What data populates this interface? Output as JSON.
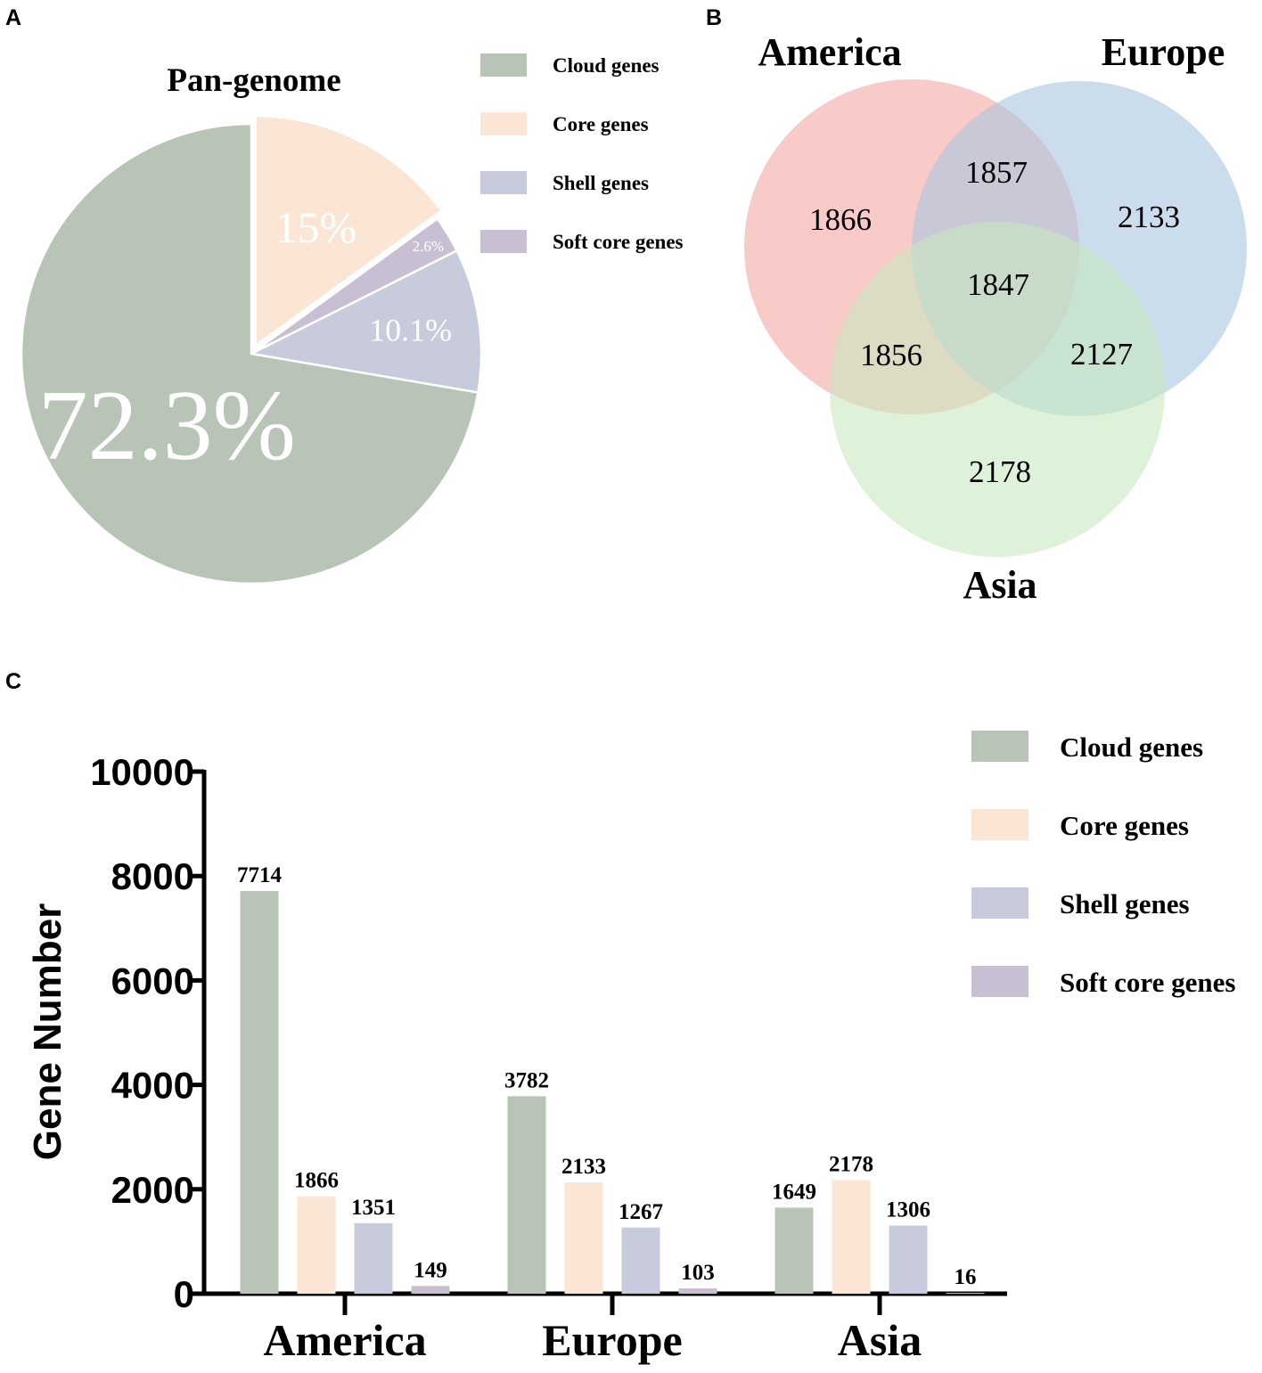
{
  "panels": {
    "a": "A",
    "b": "B",
    "c": "C"
  },
  "colors": {
    "Cloud genes": "#b7c4b6",
    "Core genes": "#fbe6d5",
    "Shell genes": "#c7cbdc",
    "Soft core genes": "#c9bfd3",
    "venn_america": "#f4a9a4",
    "venn_europe": "#a8c6e0",
    "venn_asia": "#c8e8c0"
  },
  "chart_data": [
    {
      "type": "pie",
      "title": "Pan-genome",
      "legend": [
        "Cloud genes",
        "Core genes",
        "Shell genes",
        "Soft core genes"
      ],
      "slices": [
        {
          "label": "Core genes",
          "value": 15,
          "text": "15%",
          "exploded": true
        },
        {
          "label": "Soft core genes",
          "value": 2.6,
          "text": "2.6%"
        },
        {
          "label": "Shell genes",
          "value": 10.1,
          "text": "10.1%"
        },
        {
          "label": "Cloud genes",
          "value": 72.3,
          "text": "72.3%"
        }
      ]
    },
    {
      "type": "venn",
      "sets": [
        "America",
        "Europe",
        "Asia"
      ],
      "regions": {
        "america_only": 1866,
        "europe_only": 2133,
        "asia_only": 2178,
        "america_europe": 1857,
        "america_asia": 1856,
        "europe_asia": 2127,
        "all_three": 1847
      }
    },
    {
      "type": "bar",
      "ylabel": "Gene Number",
      "xlabel": "",
      "ylim": [
        0,
        10000
      ],
      "yticks": [
        0,
        2000,
        4000,
        6000,
        8000,
        10000
      ],
      "categories": [
        "America",
        "Europe",
        "Asia"
      ],
      "series": [
        {
          "name": "Cloud genes",
          "values": [
            7714,
            3782,
            1649
          ]
        },
        {
          "name": "Core genes",
          "values": [
            1866,
            2133,
            2178
          ]
        },
        {
          "name": "Shell genes",
          "values": [
            1351,
            1267,
            1306
          ]
        },
        {
          "name": "Soft core genes",
          "values": [
            149,
            103,
            16
          ]
        }
      ],
      "legend": [
        "Cloud genes",
        "Core genes",
        "Shell genes",
        "Soft core genes"
      ]
    }
  ]
}
